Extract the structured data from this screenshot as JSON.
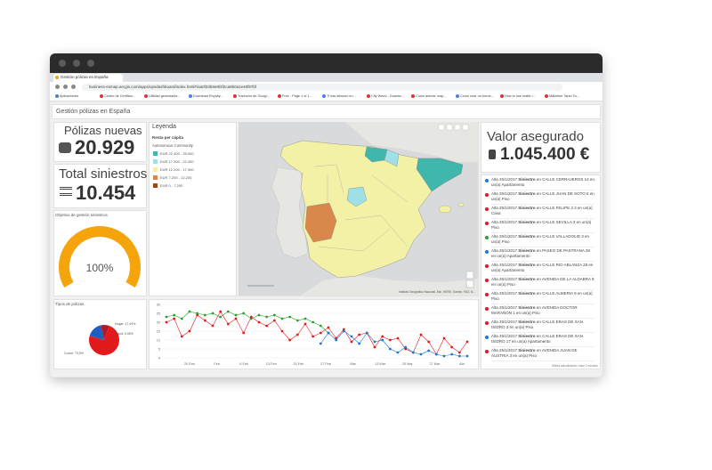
{
  "browser": {
    "tab_title": "Gestión pólizas en España",
    "url": "business-esmap.arcgis.com/apps/opsdashboard/index.html#/aa0f33b9e8f4f2ca9b0a1e40f87bf",
    "bookmarks": [
      "Aplicaciones",
      "Centro de Certifica...",
      "Utilidad geoestadís...",
      "Download Royalty...",
      "Traductor de Googl...",
      "Free - Page 1 of 1...",
      "Ti has attacció en...",
      "City Weed - Guarda...",
      "Como animar map...",
      "Como usar un forme...",
      "How to use matte i...",
      "Mákelker Tarzó Ta..."
    ]
  },
  "dashboard": {
    "title": "Gestión pólizas en España"
  },
  "polizas": {
    "label": "Pólizas nuevas",
    "value": "20.929"
  },
  "siniestros": {
    "label": "Total siniestros",
    "value": "10.454"
  },
  "gauge": {
    "title": "Objetivo de gestión siniestros",
    "value": 100,
    "value_label": "100%",
    "range": [
      0,
      100
    ],
    "color": "#f5a40c"
  },
  "pie": {
    "title": "Tipos de pólizas",
    "slices": [
      {
        "name": "Coche",
        "value": 73.9,
        "label": "Coche: 73,9%",
        "color": "#e31a1c"
      },
      {
        "name": "Hogar",
        "value": 17.04,
        "label": "Hogar: 17,04%",
        "color": "#1f5fbf"
      },
      {
        "name": "Salud",
        "value": 9.06,
        "label": "Salud: 9,06%",
        "color": "#b2182b"
      }
    ]
  },
  "legend": {
    "title": "Leyenda",
    "field": "Renta per cápita",
    "layer": "Autonomous Community",
    "classes": [
      {
        "label": "EUR 22.400 - 35.000",
        "color": "#3fb7ad"
      },
      {
        "label": "EUR 17.300 - 22.400",
        "color": "#9fe0e6"
      },
      {
        "label": "EUR 12.200 - 17.300",
        "color": "#f3f1a6"
      },
      {
        "label": "EUR 7.200 - 12.200",
        "color": "#d9874a"
      },
      {
        "label": "EUR 0 - 7.200",
        "color": "#9c4a1a"
      }
    ]
  },
  "map": {
    "attribution": "Instituto Geográfico Nacional, Esri, HERE, Garmin, FAO, N..."
  },
  "valor": {
    "label": "Valor asegurado",
    "value": "1.045.400 €"
  },
  "line_chart": {
    "ylim": [
      0,
      30
    ],
    "yticks": [
      0,
      5,
      10,
      15,
      20,
      25,
      30
    ],
    "xtick_labels": [
      "20 Ene",
      "Feb",
      "6 Feb",
      "13 Feb",
      "20 Feb",
      "27 Feb",
      "Mar",
      "13 Mar",
      "20 Mar",
      "27 Mar",
      "Abr"
    ],
    "series": [
      {
        "name": "Salud",
        "color": "#2ca02c",
        "values": [
          23,
          24,
          22,
          26,
          25,
          24,
          25,
          23,
          26,
          24,
          25,
          22,
          24,
          23,
          24,
          22,
          23,
          21,
          22,
          20,
          18,
          14,
          null,
          null,
          null,
          null,
          null,
          null,
          null,
          null,
          null,
          null,
          null,
          null,
          null,
          null,
          null,
          null,
          null,
          null
        ]
      },
      {
        "name": "Coche",
        "color": "#e31a1c",
        "values": [
          20,
          22,
          12,
          15,
          24,
          21,
          18,
          26,
          19,
          22,
          14,
          23,
          20,
          18,
          21,
          15,
          10,
          13,
          19,
          12,
          14,
          17,
          11,
          16,
          9,
          13,
          14,
          6,
          12,
          10,
          11,
          5,
          3,
          13,
          9,
          2,
          11,
          6,
          3,
          9
        ]
      },
      {
        "name": "Hogar",
        "color": "#1f77d4",
        "values": [
          null,
          null,
          null,
          null,
          null,
          null,
          null,
          null,
          null,
          null,
          null,
          null,
          null,
          null,
          null,
          null,
          null,
          null,
          null,
          null,
          8,
          14,
          10,
          15,
          12,
          8,
          14,
          9,
          10,
          5,
          3,
          6,
          3,
          2,
          4,
          2,
          1,
          2,
          1,
          1
        ]
      }
    ]
  },
  "list": {
    "items": [
      {
        "date": "Alta 25/1/2017",
        "kind": "Siniestro",
        "text": "en CALLE CERRAJEROS 14 en un(a) Apartamento",
        "color": "#1f77d4"
      },
      {
        "date": "Alta 25/1/2017",
        "kind": "Siniestro",
        "text": "en CALLE JUAN DE SOTO 6 en un(a) Piso",
        "color": "#e31a1c"
      },
      {
        "date": "Alta 25/1/2017",
        "kind": "Siniestro",
        "text": "en CALLE FELIPE 3 3 en un(a) Casa",
        "color": "#e31a1c"
      },
      {
        "date": "Alta 25/1/2017",
        "kind": "Siniestro",
        "text": "en CALLE SEVILLA 3 en un(a) Piso",
        "color": "#e31a1c"
      },
      {
        "date": "Alta 25/1/2017",
        "kind": "Siniestro",
        "text": "en CALLE VALLADOLID 3 en un(a) Piso",
        "color": "#2ca02c"
      },
      {
        "date": "Alta 25/1/2017",
        "kind": "Siniestro",
        "text": "en PASEO DE PASTRANA 28 en un(a) Apartamento",
        "color": "#1f77d4"
      },
      {
        "date": "Alta 25/1/2017",
        "kind": "Siniestro",
        "text": "en CALLE RIO ABLANZA 28 en un(a) Apartamento",
        "color": "#e31a1c"
      },
      {
        "date": "Alta 25/1/2017",
        "kind": "Siniestro",
        "text": "en AVENIDA DE LA ALDABRA 8 en un(a) Piso",
        "color": "#e31a1c"
      },
      {
        "date": "Alta 25/1/2017",
        "kind": "Siniestro",
        "text": "en CALLE ALMERIA 9 en un(a) Piso",
        "color": "#e31a1c"
      },
      {
        "date": "Alta 25/1/2017",
        "kind": "Siniestro",
        "text": "en AVENIDA DOCTOR MARAÑON 1 en un(a) Piso",
        "color": "#e31a1c"
      },
      {
        "date": "Alta 25/1/2017",
        "kind": "Siniestro",
        "text": "en CALLE ERAS DE SAN ISIDRO 3 en un(a) Piso",
        "color": "#e31a1c"
      },
      {
        "date": "Alta 25/1/2017",
        "kind": "Siniestro",
        "text": "en CALLE ERAS DE SAN ISIDRO 17 en un(a) Apartamento",
        "color": "#1f77d4"
      },
      {
        "date": "Alta 25/1/2017",
        "kind": "Siniestro",
        "text": "en AVENIDA JUAN DE AUSTRIA 3 en un(a) Piso",
        "color": "#e31a1c"
      }
    ],
    "footer": "Última actualización: hace 2 minutos"
  }
}
